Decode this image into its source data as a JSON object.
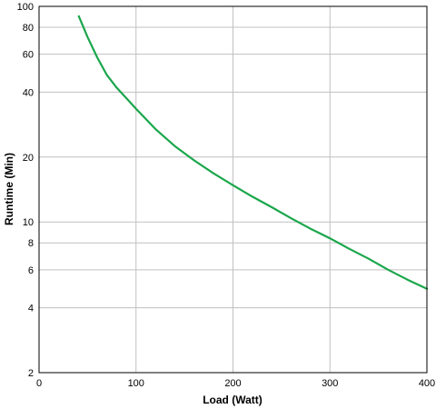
{
  "chart_data": {
    "type": "line",
    "title": "",
    "xlabel": "Load (Watt)",
    "ylabel": "Runtime (Min)",
    "x_scale": "linear",
    "y_scale": "log",
    "xlim": [
      0,
      400
    ],
    "ylim": [
      2,
      100
    ],
    "x_ticks": [
      0,
      100,
      200,
      300,
      400
    ],
    "y_ticks": [
      2,
      4,
      6,
      8,
      10,
      20,
      40,
      60,
      80,
      100
    ],
    "grid": true,
    "legend": "none",
    "series": [
      {
        "color": "#1aa64b",
        "x": [
          41,
          50,
          60,
          70,
          80,
          90,
          100,
          120,
          140,
          160,
          180,
          200,
          220,
          240,
          260,
          280,
          300,
          320,
          340,
          360,
          380,
          400
        ],
        "y": [
          90,
          72,
          58,
          48,
          42,
          37.5,
          33.5,
          27,
          22.5,
          19.3,
          16.8,
          14.8,
          13.1,
          11.7,
          10.4,
          9.3,
          8.4,
          7.5,
          6.75,
          6.0,
          5.4,
          4.9
        ]
      }
    ]
  }
}
